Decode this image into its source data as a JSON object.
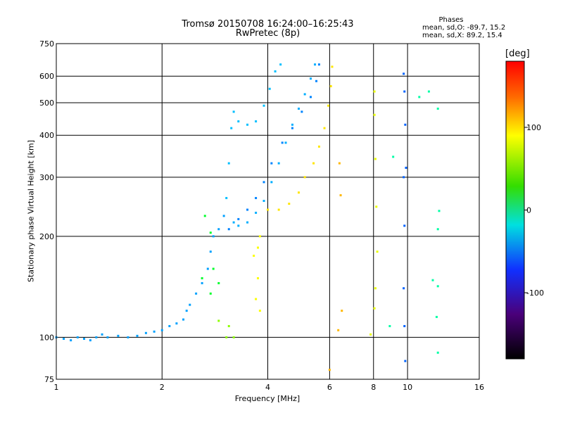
{
  "title": "Tromsø 20150708 16:24:00–16:25:43",
  "subtitle": "RwPretec (8p)",
  "phases": {
    "heading": "Phases",
    "o_line": "mean, sd,O: -89.7, 15.2",
    "x_line": "mean, sd,X:  89.2, 15.4"
  },
  "colorbar": {
    "unit_label": "deg",
    "tick_labels": [
      "100",
      "0",
      "-100"
    ],
    "range": [
      -180,
      180
    ]
  },
  "chart_data": {
    "type": "scatter",
    "xlabel": "Frequency [MHz]",
    "ylabel": "Stationary phase Virtual Height [km]",
    "x_scale": "log",
    "y_scale": "log",
    "xlim": [
      1,
      16
    ],
    "ylim": [
      75,
      750
    ],
    "x_ticks": [
      1,
      2,
      4,
      6,
      8,
      10,
      16
    ],
    "y_ticks": [
      75,
      100,
      200,
      300,
      400,
      500,
      600,
      750
    ],
    "grid": true,
    "color_key": "phase_deg",
    "series": [
      {
        "points": [
          [
            1.0,
            100
          ],
          [
            1.05,
            99
          ],
          [
            1.1,
            98
          ],
          [
            1.15,
            100
          ],
          [
            1.2,
            99
          ],
          [
            1.25,
            98
          ],
          [
            1.3,
            100
          ],
          [
            1.35,
            102
          ],
          [
            1.4,
            100
          ],
          [
            1.5,
            101
          ],
          [
            1.6,
            100
          ],
          [
            1.7,
            101
          ],
          [
            1.8,
            103
          ],
          [
            1.9,
            104
          ],
          [
            2.0,
            105
          ],
          [
            2.1,
            108
          ],
          [
            2.2,
            110
          ],
          [
            2.3,
            113
          ],
          [
            2.35,
            120
          ],
          [
            2.4,
            125
          ],
          [
            2.5,
            135
          ],
          [
            2.6,
            145
          ],
          [
            2.7,
            160
          ],
          [
            2.75,
            180
          ],
          [
            2.8,
            200
          ],
          [
            2.9,
            210
          ],
          [
            3.0,
            230
          ]
        ],
        "phase_deg": -100
      },
      {
        "points": [
          [
            3.05,
            260
          ],
          [
            3.1,
            330
          ],
          [
            3.15,
            420
          ],
          [
            3.2,
            470
          ],
          [
            3.3,
            440
          ],
          [
            3.5,
            430
          ],
          [
            3.7,
            440
          ],
          [
            3.9,
            490
          ],
          [
            4.05,
            550
          ],
          [
            4.2,
            620
          ],
          [
            4.35,
            650
          ]
        ],
        "phase_deg": -90
      },
      {
        "points": [
          [
            3.2,
            220
          ],
          [
            3.3,
            215
          ],
          [
            3.5,
            220
          ],
          [
            3.7,
            235
          ],
          [
            3.9,
            255
          ],
          [
            4.1,
            290
          ],
          [
            4.3,
            330
          ],
          [
            4.5,
            380
          ],
          [
            4.7,
            430
          ],
          [
            4.9,
            480
          ],
          [
            5.1,
            530
          ],
          [
            5.3,
            590
          ],
          [
            5.45,
            650
          ]
        ],
        "phase_deg": -95
      },
      {
        "points": [
          [
            3.1,
            210
          ],
          [
            3.3,
            225
          ],
          [
            3.5,
            240
          ],
          [
            3.7,
            260
          ],
          [
            3.9,
            290
          ],
          [
            4.1,
            330
          ],
          [
            4.4,
            380
          ],
          [
            4.7,
            420
          ],
          [
            5.0,
            470
          ],
          [
            5.3,
            520
          ],
          [
            5.5,
            580
          ],
          [
            5.6,
            650
          ]
        ],
        "phase_deg": -110
      },
      {
        "points": [
          [
            3.65,
            175
          ],
          [
            3.75,
            185
          ],
          [
            3.8,
            200
          ],
          [
            3.75,
            150
          ],
          [
            3.7,
            130
          ],
          [
            3.8,
            120
          ]
        ],
        "phase_deg": 95
      },
      {
        "points": [
          [
            4.0,
            240
          ],
          [
            4.3,
            240
          ],
          [
            4.6,
            250
          ],
          [
            4.9,
            270
          ],
          [
            5.1,
            300
          ],
          [
            5.4,
            330
          ],
          [
            5.6,
            370
          ],
          [
            5.8,
            420
          ],
          [
            5.95,
            490
          ],
          [
            6.05,
            560
          ],
          [
            6.1,
            640
          ]
        ],
        "phase_deg": 105
      },
      {
        "points": [
          [
            2.65,
            230
          ],
          [
            2.75,
            205
          ],
          [
            2.8,
            160
          ],
          [
            2.9,
            145
          ],
          [
            2.75,
            135
          ],
          [
            2.6,
            150
          ]
        ],
        "phase_deg": 0
      },
      {
        "points": [
          [
            3.05,
            100
          ],
          [
            3.2,
            100
          ],
          [
            3.1,
            108
          ],
          [
            2.9,
            112
          ]
        ],
        "phase_deg": 60
      },
      {
        "points": [
          [
            6.4,
            330
          ],
          [
            6.45,
            265
          ],
          [
            6.5,
            120
          ],
          [
            6.35,
            105
          ],
          [
            6.0,
            80
          ]
        ],
        "phase_deg": 120
      },
      {
        "points": [
          [
            8.05,
            540
          ],
          [
            8.05,
            460
          ],
          [
            8.1,
            340
          ],
          [
            8.15,
            245
          ],
          [
            8.2,
            180
          ],
          [
            8.1,
            140
          ],
          [
            8.05,
            122
          ],
          [
            7.85,
            102
          ]
        ],
        "phase_deg": 90
      },
      {
        "points": [
          [
            9.75,
            610
          ],
          [
            9.8,
            540
          ],
          [
            9.85,
            430
          ],
          [
            9.75,
            300
          ],
          [
            9.9,
            320
          ],
          [
            9.8,
            215
          ],
          [
            9.75,
            140
          ],
          [
            9.8,
            108
          ],
          [
            9.85,
            85
          ]
        ],
        "phase_deg": -120
      },
      {
        "points": [
          [
            9.1,
            345
          ],
          [
            8.9,
            108
          ],
          [
            10.8,
            520
          ],
          [
            11.5,
            540
          ],
          [
            12.2,
            480
          ],
          [
            12.3,
            238
          ],
          [
            12.2,
            210
          ],
          [
            11.8,
            148
          ],
          [
            12.2,
            142
          ],
          [
            12.1,
            115
          ],
          [
            12.2,
            90
          ]
        ],
        "phase_deg": -40
      }
    ]
  }
}
